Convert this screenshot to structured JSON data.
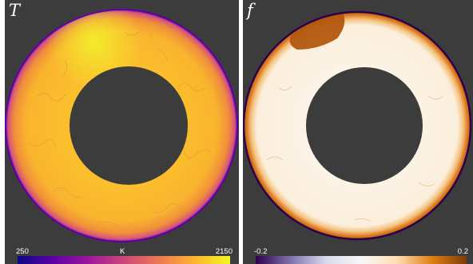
{
  "panels": [
    {
      "symbol": "T",
      "colorbar": {
        "min": "250",
        "unit": "K",
        "max": "2150",
        "colormap": [
          "#0d0887",
          "#5c01a6",
          "#9c179e",
          "#cc4778",
          "#ed7953",
          "#fdb42f",
          "#f0f921"
        ]
      }
    },
    {
      "symbol": "f",
      "colorbar": {
        "min": "-0.2",
        "max": "0.2",
        "colormap": [
          "#2d004b",
          "#8073ac",
          "#d8daeb",
          "#f7f7f7",
          "#fee0b6",
          "#e08214",
          "#7f3b08"
        ]
      }
    }
  ],
  "colors": {
    "background": "#3c3c3c",
    "boundary": "#2d004b"
  }
}
